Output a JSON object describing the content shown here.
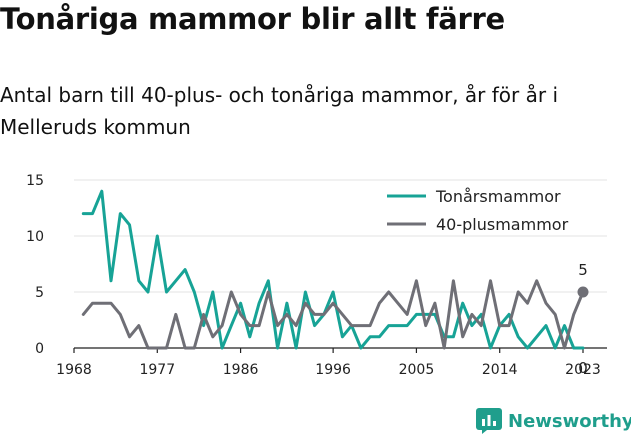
{
  "title": "Tonåriga mammor blir allt färre",
  "subtitle": "Antal barn till 40-plus- och tonåriga mammor, år för år i Melleruds kommun",
  "brand": "Newsworthy",
  "chart_data": {
    "type": "line",
    "title": "Tonåriga mammor blir allt färre",
    "subtitle": "Antal barn till 40-plus- och tonåriga mammor, år för år i Melleruds kommun",
    "xlabel": "",
    "ylabel": "",
    "xlim": [
      1968,
      2023
    ],
    "ylim": [
      0,
      15
    ],
    "x_ticks": [
      1968,
      1977,
      1986,
      1996,
      2005,
      2014,
      2023
    ],
    "y_ticks": [
      0,
      5,
      10,
      15
    ],
    "grid": true,
    "legend_position": "top-right",
    "x": [
      1969,
      1970,
      1971,
      1972,
      1973,
      1974,
      1975,
      1976,
      1977,
      1978,
      1979,
      1980,
      1981,
      1982,
      1983,
      1984,
      1985,
      1986,
      1987,
      1988,
      1989,
      1990,
      1991,
      1992,
      1993,
      1994,
      1995,
      1996,
      1997,
      1998,
      1999,
      2000,
      2001,
      2002,
      2003,
      2004,
      2005,
      2006,
      2007,
      2008,
      2009,
      2010,
      2011,
      2012,
      2013,
      2014,
      2015,
      2016,
      2017,
      2018,
      2019,
      2020,
      2021,
      2022,
      2023
    ],
    "series": [
      {
        "name": "Tonårsmammor",
        "color": "#17a396",
        "values": [
          12,
          12,
          14,
          6,
          12,
          11,
          6,
          5,
          10,
          5,
          6,
          7,
          5,
          2,
          5,
          0,
          2,
          4,
          1,
          4,
          6,
          0,
          4,
          0,
          5,
          2,
          3,
          5,
          1,
          2,
          0,
          1,
          1,
          2,
          2,
          2,
          3,
          3,
          3,
          1,
          1,
          4,
          2,
          3,
          0,
          2,
          3,
          1,
          0,
          1,
          2,
          0,
          2,
          0,
          0
        ],
        "end_label": "0"
      },
      {
        "name": "40-plusmammor",
        "color": "#6f6f76",
        "values": [
          3,
          4,
          4,
          4,
          3,
          1,
          2,
          0,
          0,
          0,
          3,
          0,
          0,
          3,
          1,
          2,
          5,
          3,
          2,
          2,
          5,
          2,
          3,
          2,
          4,
          3,
          3,
          4,
          3,
          2,
          2,
          2,
          4,
          5,
          4,
          3,
          6,
          2,
          4,
          0,
          6,
          1,
          3,
          2,
          6,
          2,
          2,
          5,
          4,
          6,
          4,
          3,
          0,
          3,
          5
        ],
        "end_label": "5"
      }
    ]
  }
}
